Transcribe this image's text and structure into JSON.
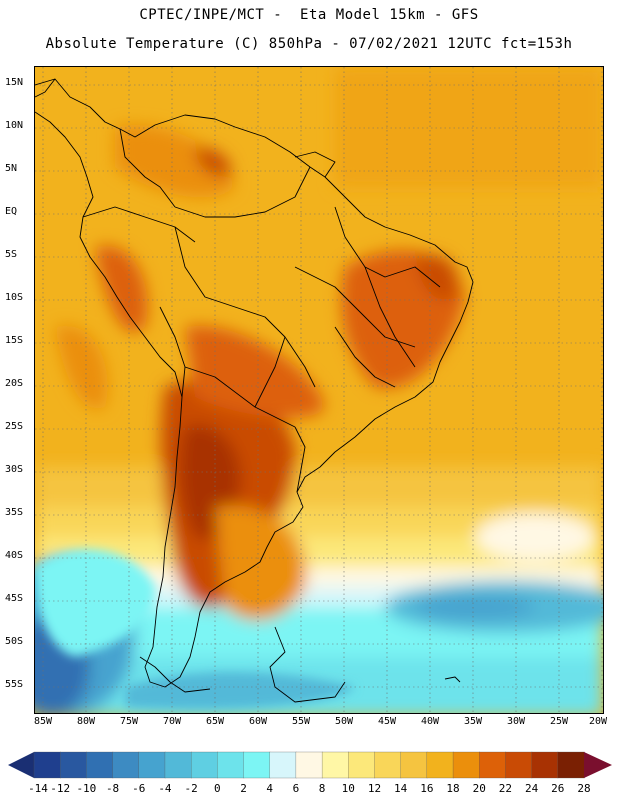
{
  "header": {
    "line1": "CPTEC/INPE/MCT -  Eta Model 15km - GFS",
    "line2": "Absolute Temperature (C) 850hPa - 07/02/2021 12UTC fct=153h"
  },
  "map": {
    "variable": "Absolute Temperature (C) 850hPa",
    "lat_labels": [
      "15N",
      "10N",
      "5N",
      "EQ",
      "5S",
      "10S",
      "15S",
      "20S",
      "25S",
      "30S",
      "35S",
      "40S",
      "45S",
      "50S",
      "55S"
    ],
    "lon_labels": [
      "85W",
      "80W",
      "75W",
      "70W",
      "65W",
      "60W",
      "55W",
      "50W",
      "45W",
      "40W",
      "35W",
      "30W",
      "25W",
      "20W"
    ]
  },
  "colorbar": {
    "labels": [
      "-14",
      "-12",
      "-10",
      "-8",
      "-6",
      "-4",
      "-2",
      "0",
      "2",
      "4",
      "6",
      "8",
      "10",
      "12",
      "14",
      "16",
      "18",
      "20",
      "22",
      "24",
      "26",
      "28"
    ],
    "colors": [
      "#1f3f8e",
      "#2958a0",
      "#3070b2",
      "#3d8bc2",
      "#46a3cf",
      "#52b9d8",
      "#5fcfe2",
      "#6de3eb",
      "#7cf5f4",
      "#d7f6fb",
      "#fff8e4",
      "#fff7a6",
      "#fce87a",
      "#f9d659",
      "#f5c440",
      "#f2b21d",
      "#eb8f0c",
      "#dd6108",
      "#c94b05",
      "#a83203",
      "#7a2003"
    ],
    "under_color": "#1a2f73",
    "over_color": "#7a0f2e"
  }
}
